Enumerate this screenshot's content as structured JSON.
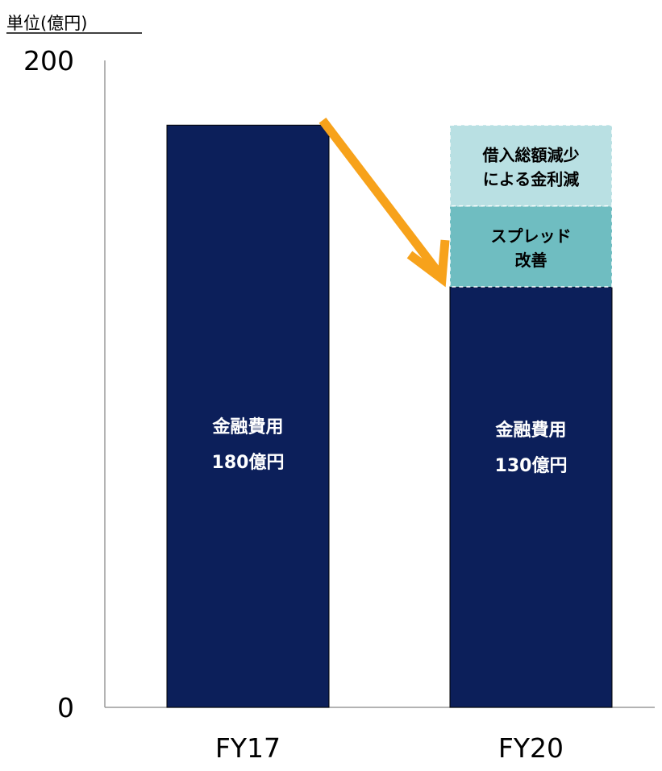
{
  "chart_data": {
    "type": "bar",
    "unit_label": "単位(億円)",
    "ylim": [
      0,
      200
    ],
    "y_ticks": [
      0,
      200
    ],
    "categories": [
      "FY17",
      "FY20"
    ],
    "series": [
      {
        "values": [
          180,
          130
        ],
        "color": "#0c1f5a"
      },
      {
        "values": [
          0,
          25
        ],
        "color": "#6fbdc1"
      },
      {
        "values": [
          0,
          25
        ],
        "color": "#b9e0e3"
      }
    ],
    "bar_labels": [
      [
        "金融費用",
        "180億円"
      ],
      [
        "金融費用",
        "130億円"
      ]
    ],
    "segment_labels": [
      [
        "スプレッド",
        "改善"
      ],
      [
        "借入総額減少",
        "による金利減"
      ]
    ],
    "annotation": {
      "type": "arrow",
      "from": "FY17",
      "to": "FY20",
      "color": "#f7a21b"
    },
    "grid": false
  }
}
